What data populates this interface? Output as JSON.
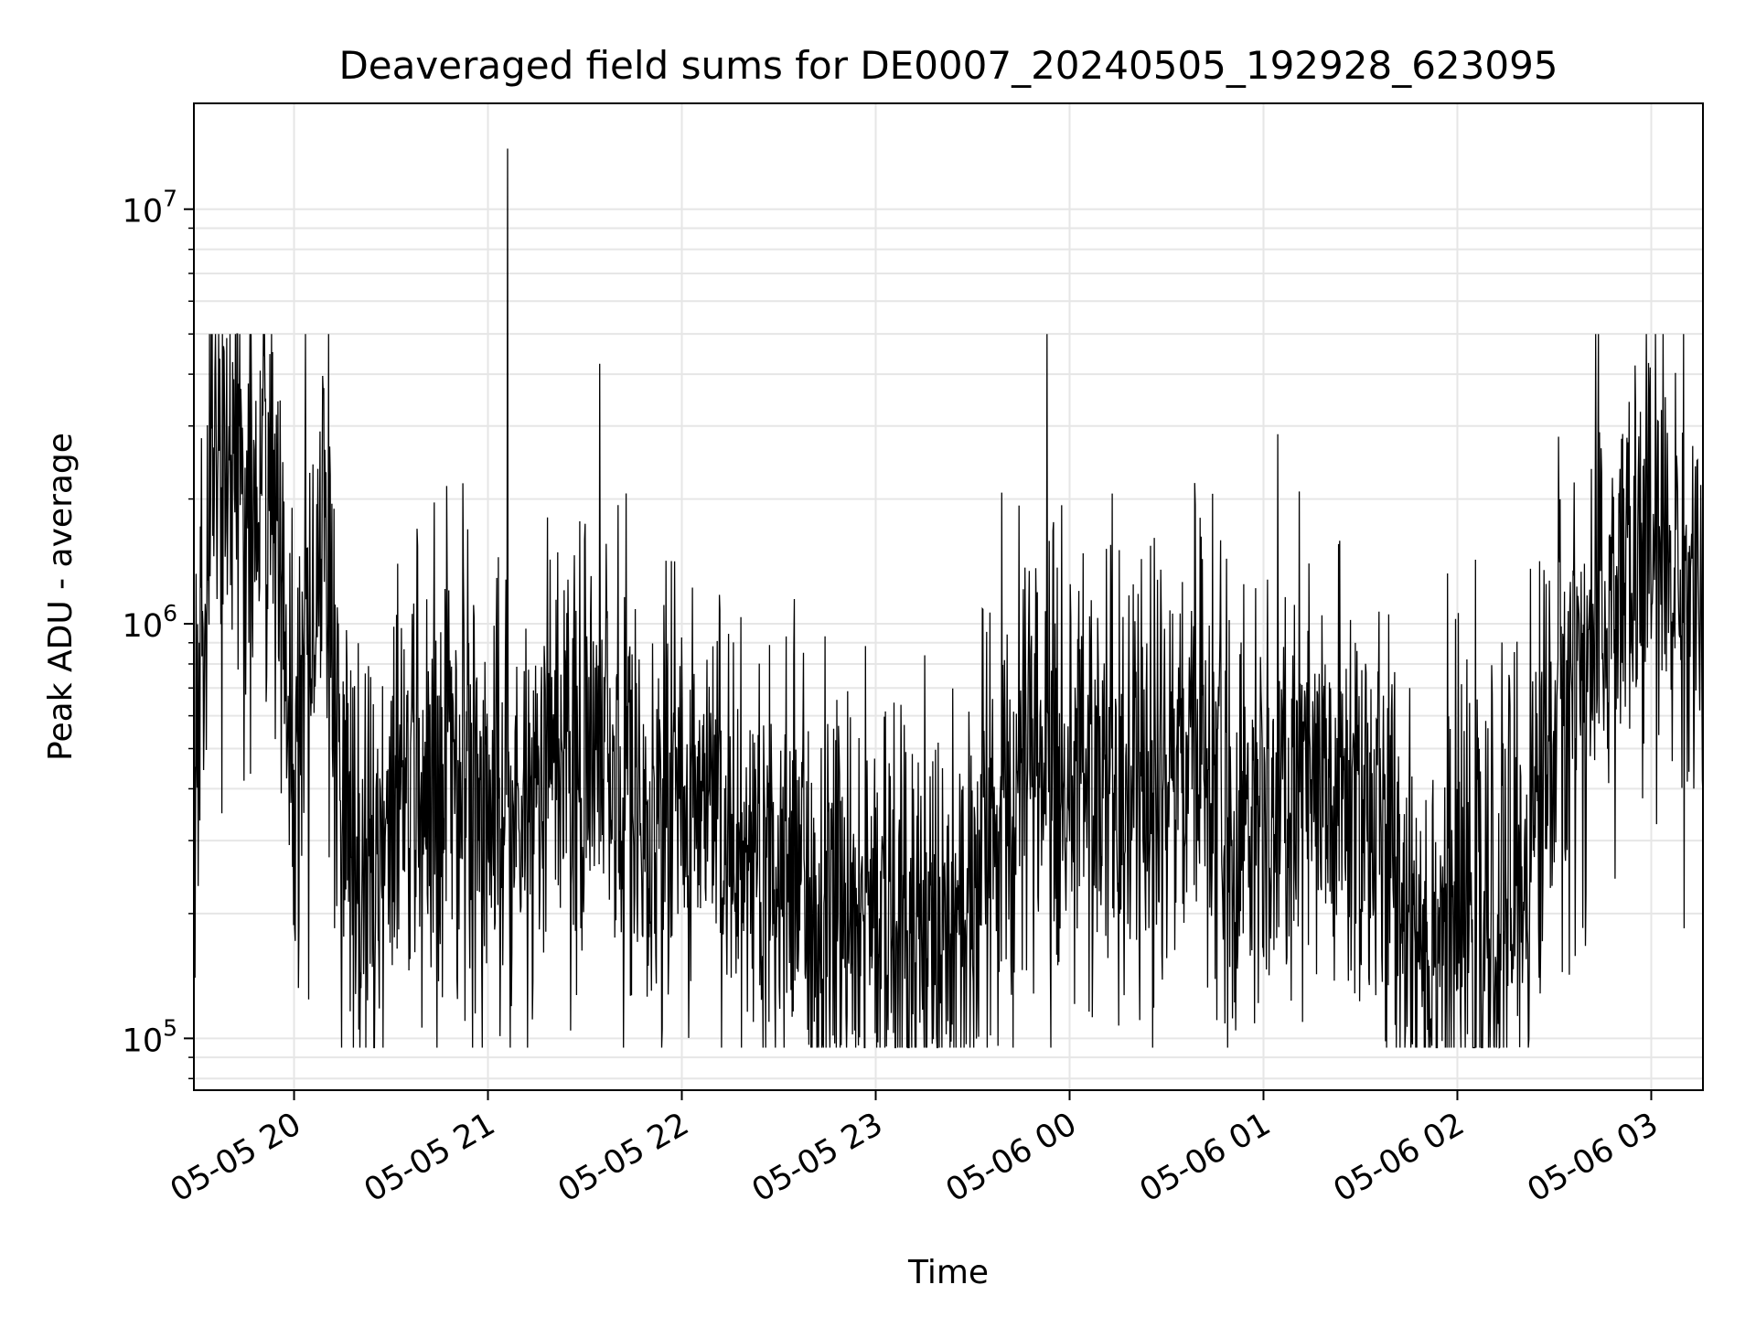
{
  "chart_data": {
    "type": "line",
    "title": "Deaveraged field sums for DE0007_20240505_192928_623095",
    "xlabel": "Time",
    "ylabel": "Peak ADU - average",
    "yscale": "log",
    "grid": true,
    "xlim": [
      "2024-05-05 19:29",
      "2024-05-06 03:16"
    ],
    "ylim": [
      75000,
      18000000
    ],
    "x_ticks": [
      "05-05 20",
      "05-05 21",
      "05-05 22",
      "05-05 23",
      "05-06 00",
      "05-06 01",
      "05-06 02",
      "05-06 03"
    ],
    "y_ticks": [
      {
        "base": "10",
        "exp": "5"
      },
      {
        "base": "10",
        "exp": "6"
      },
      {
        "base": "10",
        "exp": "7"
      }
    ],
    "line_color": "#000000",
    "spike": {
      "x": "2024-05-05 21:06",
      "y": 14000000
    },
    "series": [
      {
        "points": [
          [
            "2024-05-05 19:29",
            200000
          ],
          [
            "2024-05-05 19:31",
            700000
          ],
          [
            "2024-05-05 19:34",
            2500000
          ],
          [
            "2024-05-05 19:37",
            3000000
          ],
          [
            "2024-05-05 19:40",
            2400000
          ],
          [
            "2024-05-05 19:43",
            2800000
          ],
          [
            "2024-05-05 19:46",
            1500000
          ],
          [
            "2024-05-05 19:49",
            2500000
          ],
          [
            "2024-05-05 19:52",
            3000000
          ],
          [
            "2024-05-05 19:55",
            1500000
          ],
          [
            "2024-05-05 19:58",
            700000
          ],
          [
            "2024-05-05 20:00",
            300000
          ],
          [
            "2024-05-05 20:03",
            600000
          ],
          [
            "2024-05-05 20:06",
            1000000
          ],
          [
            "2024-05-05 20:09",
            1500000
          ],
          [
            "2024-05-05 20:12",
            800000
          ],
          [
            "2024-05-05 20:15",
            450000
          ],
          [
            "2024-05-05 20:20",
            250000
          ],
          [
            "2024-05-05 20:30",
            300000
          ],
          [
            "2024-05-05 20:40",
            450000
          ],
          [
            "2024-05-05 20:50",
            500000
          ],
          [
            "2024-05-05 21:00",
            400000
          ],
          [
            "2024-05-05 21:10",
            350000
          ],
          [
            "2024-05-05 21:20",
            450000
          ],
          [
            "2024-05-05 21:30",
            500000
          ],
          [
            "2024-05-05 21:40",
            400000
          ],
          [
            "2024-05-05 21:50",
            350000
          ],
          [
            "2024-05-05 22:00",
            400000
          ],
          [
            "2024-05-05 22:10",
            350000
          ],
          [
            "2024-05-05 22:20",
            300000
          ],
          [
            "2024-05-05 22:30",
            280000
          ],
          [
            "2024-05-05 22:40",
            200000
          ],
          [
            "2024-05-05 22:50",
            220000
          ],
          [
            "2024-05-05 23:00",
            200000
          ],
          [
            "2024-05-05 23:10",
            190000
          ],
          [
            "2024-05-05 23:20",
            190000
          ],
          [
            "2024-05-05 23:30",
            200000
          ],
          [
            "2024-05-05 23:40",
            400000
          ],
          [
            "2024-05-05 23:50",
            500000
          ],
          [
            "2024-05-06 00:00",
            450000
          ],
          [
            "2024-05-06 00:10",
            400000
          ],
          [
            "2024-05-06 00:20",
            350000
          ],
          [
            "2024-05-06 00:30",
            400000
          ],
          [
            "2024-05-06 00:40",
            550000
          ],
          [
            "2024-05-06 00:50",
            350000
          ],
          [
            "2024-05-06 01:00",
            300000
          ],
          [
            "2024-05-06 01:10",
            400000
          ],
          [
            "2024-05-06 01:20",
            350000
          ],
          [
            "2024-05-06 01:30",
            400000
          ],
          [
            "2024-05-06 01:40",
            250000
          ],
          [
            "2024-05-06 01:50",
            180000
          ],
          [
            "2024-05-06 02:00",
            200000
          ],
          [
            "2024-05-06 02:10",
            170000
          ],
          [
            "2024-05-06 02:20",
            250000
          ],
          [
            "2024-05-06 02:30",
            600000
          ],
          [
            "2024-05-06 02:40",
            800000
          ],
          [
            "2024-05-06 02:50",
            1200000
          ],
          [
            "2024-05-06 03:00",
            1500000
          ],
          [
            "2024-05-06 03:10",
            1300000
          ],
          [
            "2024-05-06 03:16",
            1100000
          ]
        ]
      }
    ]
  }
}
